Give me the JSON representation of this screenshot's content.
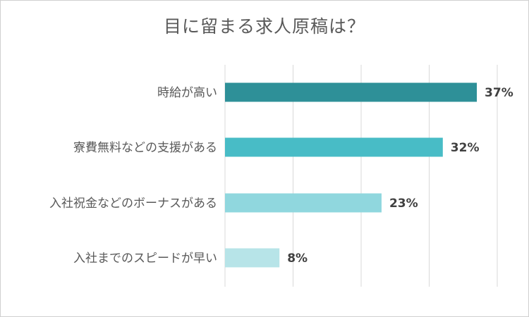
{
  "chart_data": {
    "type": "bar",
    "orientation": "horizontal",
    "title": "目に留まる求人原稿は？",
    "categories": [
      "時給が高い",
      "寮費無料などの支援がある",
      "入社祝金などのボーナスがある",
      "入社までのスピードが早い"
    ],
    "values": [
      37,
      32,
      23,
      8
    ],
    "value_labels": [
      "37%",
      "32%",
      "23%",
      "8%"
    ],
    "xlim": [
      0,
      40
    ],
    "grid": true,
    "legend": "none",
    "colors": [
      "#2e9098",
      "#48bcc6",
      "#90d7de",
      "#b7e4e8"
    ]
  }
}
